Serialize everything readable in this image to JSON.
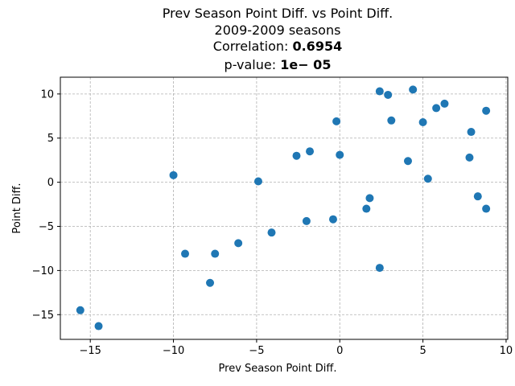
{
  "chart_data": {
    "type": "scatter",
    "title_line1": "Prev Season Point Diff. vs Point Diff.",
    "title_line2": "2009-2009 seasons",
    "correlation_label": "Correlation: ",
    "correlation_value": "0.6954",
    "pvalue_label": "p-value: ",
    "pvalue_value": "1e− 05",
    "xlabel": "Prev Season Point Diff.",
    "ylabel": "Point Diff.",
    "xlim": [
      -16.8,
      10.1
    ],
    "ylim": [
      -17.8,
      11.9
    ],
    "xticks": [
      -15,
      -10,
      -5,
      0,
      5,
      10
    ],
    "yticks": [
      -15,
      -10,
      -5,
      0,
      5,
      10
    ],
    "xtick_labels": [
      "−15",
      "−10",
      "−5",
      "0",
      "5",
      "10"
    ],
    "ytick_labels": [
      "−15",
      "−10",
      "−5",
      "0",
      "5",
      "10"
    ],
    "grid": true,
    "marker_color": "#1f77b4",
    "points": [
      {
        "x": -15.6,
        "y": -14.5
      },
      {
        "x": -14.5,
        "y": -16.3
      },
      {
        "x": -10.0,
        "y": 0.8
      },
      {
        "x": -9.3,
        "y": -8.1
      },
      {
        "x": -7.8,
        "y": -11.4
      },
      {
        "x": -7.5,
        "y": -8.1
      },
      {
        "x": -6.1,
        "y": -6.9
      },
      {
        "x": -4.9,
        "y": 0.1
      },
      {
        "x": -4.1,
        "y": -5.7
      },
      {
        "x": -2.6,
        "y": 3.0
      },
      {
        "x": -2.0,
        "y": -4.4
      },
      {
        "x": -1.8,
        "y": 3.5
      },
      {
        "x": -0.4,
        "y": -4.2
      },
      {
        "x": -0.2,
        "y": 6.9
      },
      {
        "x": 0.0,
        "y": 3.1
      },
      {
        "x": 1.6,
        "y": -3.0
      },
      {
        "x": 1.8,
        "y": -1.8
      },
      {
        "x": 2.4,
        "y": 10.3
      },
      {
        "x": 2.4,
        "y": -9.7
      },
      {
        "x": 2.9,
        "y": 9.9
      },
      {
        "x": 3.1,
        "y": 7.0
      },
      {
        "x": 4.1,
        "y": 2.4
      },
      {
        "x": 4.4,
        "y": 10.5
      },
      {
        "x": 5.0,
        "y": 6.8
      },
      {
        "x": 5.3,
        "y": 0.4
      },
      {
        "x": 5.8,
        "y": 8.4
      },
      {
        "x": 6.3,
        "y": 8.9
      },
      {
        "x": 7.8,
        "y": 2.8
      },
      {
        "x": 7.9,
        "y": 5.7
      },
      {
        "x": 8.3,
        "y": -1.6
      },
      {
        "x": 8.8,
        "y": 8.1
      },
      {
        "x": 8.8,
        "y": -3.0
      }
    ]
  }
}
